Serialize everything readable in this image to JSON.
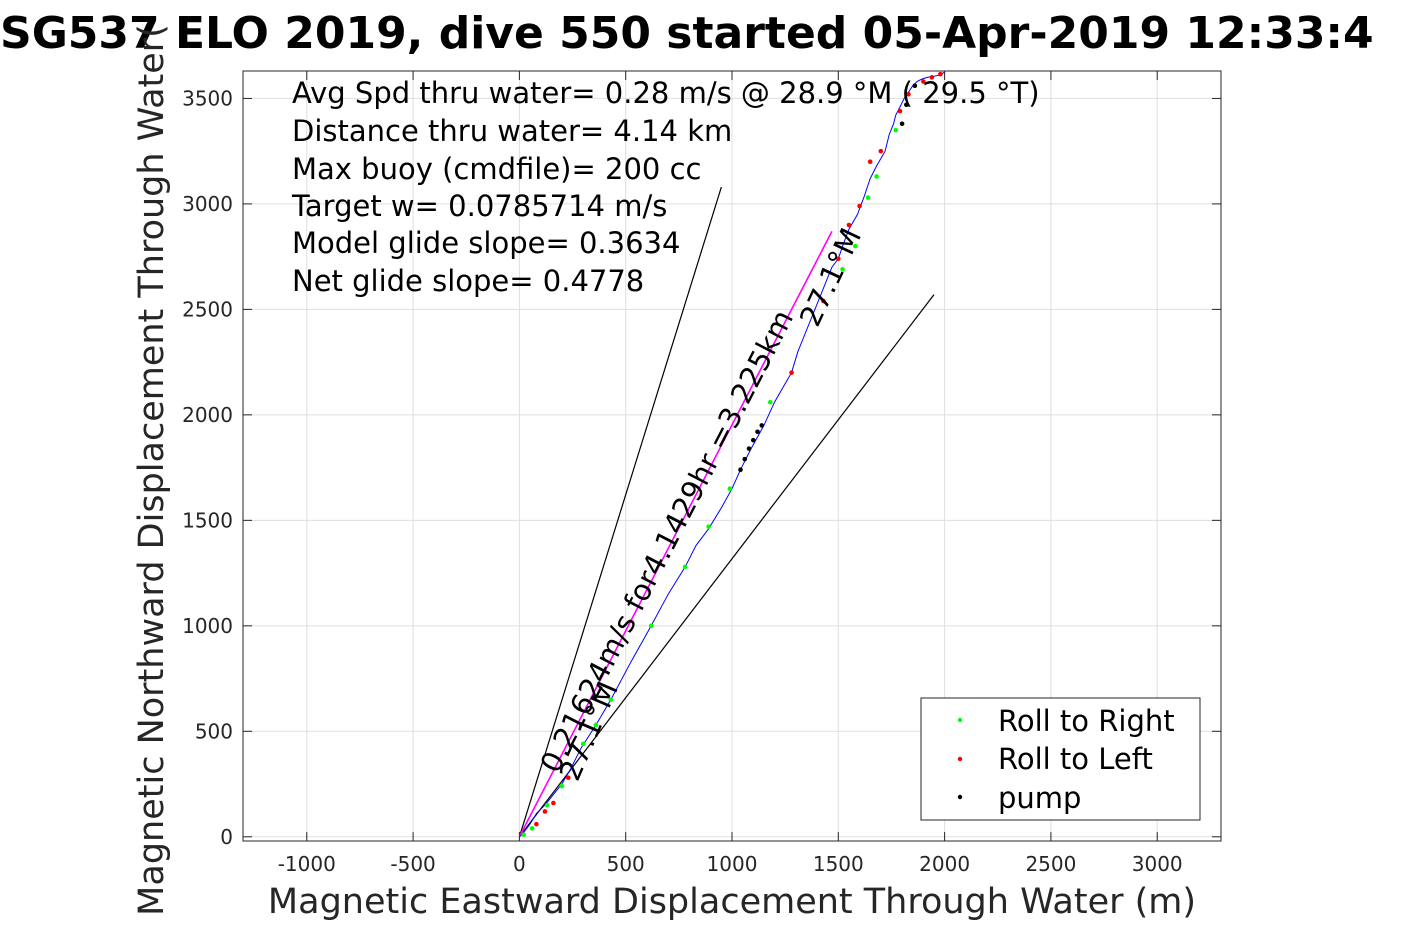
{
  "chart_data": {
    "type": "line",
    "title": "SG537 ELO 2019, dive 550 started 05-Apr-2019 12:33:4",
    "xlabel": "Magnetic Eastward Displacement Through Water (m)",
    "ylabel": "Magnetic Northward Displacement Through Water(",
    "xlim": [
      -1300,
      3300
    ],
    "ylim": [
      -20,
      3630
    ],
    "xticks": [
      -1000,
      -500,
      0,
      500,
      1000,
      1500,
      2000,
      2500,
      3000
    ],
    "yticks": [
      0,
      500,
      1000,
      1500,
      2000,
      2500,
      3000,
      3500
    ],
    "xtick_labels": [
      "-1000",
      "-500",
      "0",
      "500",
      "1000",
      "1500",
      "2000",
      "2500",
      "3000"
    ],
    "ytick_labels": [
      "0",
      "500",
      "1000",
      "1500",
      "2000",
      "2500",
      "3000",
      "3500"
    ],
    "grid": true,
    "stats": [
      "Avg Spd thru water=  0.28 m/s @  28.9 °M ( 29.5 °T)",
      "Distance thru water=  4.14 km",
      "Max buoy (cmdfile)= 200 cc",
      "Target w= 0.0785714 m/s",
      "Model glide slope= 0.3634",
      "Net glide slope= 0.4778"
    ],
    "annotations": {
      "current_text": "0.21624m/s for4.1429hr =3.225km",
      "current_heading": "27.1°M",
      "arrow_heading": "27.1°M"
    },
    "track": {
      "color": "#0000ff",
      "x": [
        0,
        20,
        50,
        80,
        120,
        160,
        200,
        240,
        290,
        360,
        430,
        520,
        620,
        700,
        780,
        830,
        890,
        950,
        1000,
        1040,
        1090,
        1150,
        1200,
        1240,
        1280,
        1310,
        1350,
        1390,
        1430,
        1470,
        1500,
        1520,
        1550,
        1590,
        1620,
        1650,
        1680,
        1720,
        1740,
        1760,
        1770,
        1790,
        1810,
        1830,
        1850,
        1870,
        1890,
        1920,
        1950,
        1980,
        2000
      ],
      "y": [
        0,
        20,
        60,
        110,
        150,
        200,
        250,
        320,
        420,
        530,
        650,
        820,
        1000,
        1150,
        1280,
        1380,
        1460,
        1560,
        1650,
        1740,
        1840,
        1950,
        2060,
        2130,
        2200,
        2300,
        2400,
        2500,
        2600,
        2700,
        2740,
        2800,
        2880,
        2950,
        3030,
        3120,
        3180,
        3250,
        3330,
        3380,
        3420,
        3460,
        3500,
        3530,
        3560,
        3580,
        3590,
        3600,
        3605,
        3612,
        3625
      ]
    },
    "current_line": {
      "color": "#ff00ff",
      "from": [
        0,
        0
      ],
      "to": [
        1470,
        2870
      ]
    },
    "model_glide_lines": {
      "color": "#000000",
      "from": [
        0,
        0
      ],
      "to_left": [
        950,
        3080
      ],
      "to_right": [
        1950,
        2570
      ]
    },
    "markers": [
      {
        "name": "Roll to Right",
        "color": "#00ff00",
        "x": [
          20,
          60,
          130,
          200,
          300,
          360,
          430,
          620,
          780,
          890,
          990,
          1180,
          1520,
          1580,
          1640,
          1680,
          1770
        ],
        "y": [
          10,
          40,
          150,
          240,
          440,
          530,
          650,
          1000,
          1280,
          1470,
          1650,
          2060,
          2690,
          2800,
          3030,
          3130,
          3350
        ]
      },
      {
        "name": "Roll to Left",
        "color": "#ff0000",
        "x": [
          80,
          120,
          160,
          230,
          1280,
          1430,
          1500,
          1550,
          1600,
          1650,
          1700,
          1790,
          1830,
          1900,
          1940,
          1980
        ],
        "y": [
          60,
          120,
          160,
          280,
          2200,
          2540,
          2740,
          2900,
          2990,
          3200,
          3250,
          3440,
          3520,
          3580,
          3600,
          3615
        ]
      },
      {
        "name": "pump",
        "color": "#000000",
        "x": [
          1040,
          1060,
          1080,
          1100,
          1120,
          1140,
          1800,
          1820,
          1860
        ],
        "y": [
          1740,
          1790,
          1840,
          1880,
          1920,
          1950,
          3380,
          3470,
          3560
        ]
      }
    ],
    "legend": {
      "location": "bottom-right",
      "entries": [
        "Roll to Right",
        "Roll to Left",
        "pump"
      ]
    }
  }
}
